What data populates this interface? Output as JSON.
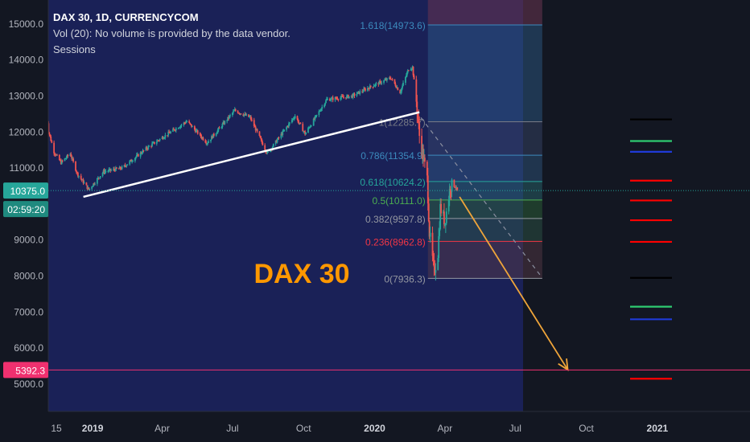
{
  "legend": {
    "symbol": "DAX 30, 1D, CURRENCYCOM",
    "volume": "Vol (20): No volume is provided by the data vendor.",
    "sessions": "Sessions"
  },
  "chart_data": {
    "type": "candlestick",
    "annotation": "DAX 30",
    "ylim": [
      4560,
      15700
    ],
    "y_ticks": [
      {
        "value": 5000,
        "label": "5000.0"
      },
      {
        "value": 6000,
        "label": "6000.0"
      },
      {
        "value": 7000,
        "label": "7000.0"
      },
      {
        "value": 8000,
        "label": "8000.0"
      },
      {
        "value": 9000,
        "label": "9000.0"
      },
      {
        "value": 11000,
        "label": "11000.0"
      },
      {
        "value": 12000,
        "label": "12000.0"
      },
      {
        "value": 13000,
        "label": "13000.0"
      },
      {
        "value": 14000,
        "label": "14000.0"
      },
      {
        "value": 15000,
        "label": "15000.0"
      }
    ],
    "x_ticks": [
      {
        "date": "2018-11-15",
        "label": "15",
        "bold": false
      },
      {
        "date": "2019-01-01",
        "label": "2019",
        "bold": true
      },
      {
        "date": "2019-04-01",
        "label": "Apr",
        "bold": false
      },
      {
        "date": "2019-07-01",
        "label": "Jul",
        "bold": false
      },
      {
        "date": "2019-10-01",
        "label": "Oct",
        "bold": false
      },
      {
        "date": "2020-01-01",
        "label": "2020",
        "bold": true
      },
      {
        "date": "2020-04-01",
        "label": "Apr",
        "bold": false
      },
      {
        "date": "2020-07-01",
        "label": "Jul",
        "bold": false
      },
      {
        "date": "2020-10-01",
        "label": "Oct",
        "bold": false
      },
      {
        "date": "2021-01-01",
        "label": "2021",
        "bold": true
      }
    ],
    "price_path": [
      {
        "date": "2018-11-01",
        "value": 12350
      },
      {
        "date": "2018-11-12",
        "value": 11450
      },
      {
        "date": "2018-11-21",
        "value": 11150
      },
      {
        "date": "2018-12-03",
        "value": 11400
      },
      {
        "date": "2018-12-12",
        "value": 10850
      },
      {
        "date": "2018-12-27",
        "value": 10400
      },
      {
        "date": "2019-01-15",
        "value": 10900
      },
      {
        "date": "2019-02-08",
        "value": 11000
      },
      {
        "date": "2019-03-15",
        "value": 11600
      },
      {
        "date": "2019-05-03",
        "value": 12300
      },
      {
        "date": "2019-05-29",
        "value": 11700
      },
      {
        "date": "2019-07-04",
        "value": 12600
      },
      {
        "date": "2019-07-24",
        "value": 12400
      },
      {
        "date": "2019-08-15",
        "value": 11400
      },
      {
        "date": "2019-09-20",
        "value": 12450
      },
      {
        "date": "2019-10-03",
        "value": 11950
      },
      {
        "date": "2019-10-31",
        "value": 12900
      },
      {
        "date": "2019-12-03",
        "value": 13000
      },
      {
        "date": "2019-12-31",
        "value": 13300
      },
      {
        "date": "2020-01-22",
        "value": 13500
      },
      {
        "date": "2020-02-03",
        "value": 13100
      },
      {
        "date": "2020-02-14",
        "value": 13750
      },
      {
        "date": "2020-02-19",
        "value": 13800
      },
      {
        "date": "2020-02-24",
        "value": 12850
      },
      {
        "date": "2020-02-28",
        "value": 11900
      },
      {
        "date": "2020-03-09",
        "value": 10700
      },
      {
        "date": "2020-03-12",
        "value": 9200
      },
      {
        "date": "2020-03-18",
        "value": 8100
      },
      {
        "date": "2020-03-23",
        "value": 8650
      },
      {
        "date": "2020-03-26",
        "value": 9900
      },
      {
        "date": "2020-04-01",
        "value": 9500
      },
      {
        "date": "2020-04-08",
        "value": 10500
      },
      {
        "date": "2020-04-14",
        "value": 10500
      },
      {
        "date": "2020-04-17",
        "value": 10375
      }
    ],
    "fib_levels": [
      {
        "ratio": "1.618",
        "price": 14973.6,
        "label": "1.618(14973.6)",
        "color": "#3c8bbd"
      },
      {
        "ratio": "1",
        "price": 12285.7,
        "label": "1(12285.7)",
        "color": "#787b86"
      },
      {
        "ratio": "0.786",
        "price": 11354.9,
        "label": "0.786(11354.9)",
        "color": "#3c8bbd"
      },
      {
        "ratio": "0.618",
        "price": 10624.2,
        "label": "0.618(10624.2)",
        "color": "#26a69a"
      },
      {
        "ratio": "0.5",
        "price": 10111.0,
        "label": "0.5(10111.0)",
        "color": "#4caf50"
      },
      {
        "ratio": "0.382",
        "price": 9597.8,
        "label": "0.382(9597.8)",
        "color": "#9598a1"
      },
      {
        "ratio": "0.236",
        "price": 8962.8,
        "label": "0.236(8962.8)",
        "color": "#f23645"
      },
      {
        "ratio": "0",
        "price": 7936.3,
        "label": "0(7936.3)",
        "color": "#9598a1"
      }
    ],
    "fib_range": {
      "start": "2020-03-10",
      "end": "2020-08-05"
    },
    "trendline": {
      "start": {
        "date": "2018-12-20",
        "value": 10200
      },
      "end": {
        "date": "2020-02-28",
        "value": 12550
      }
    },
    "dashed_line": {
      "start": {
        "date": "2020-03-01",
        "value": 12400
      },
      "end": {
        "date": "2020-08-05",
        "value": 7950
      }
    },
    "arrow": {
      "start": {
        "date": "2020-04-20",
        "value": 10200
      },
      "end": {
        "date": "2020-09-07",
        "value": 5400
      }
    },
    "right_levels": [
      {
        "value": 12350,
        "color": "#000000"
      },
      {
        "value": 11750,
        "color": "#2ecc71"
      },
      {
        "value": 11450,
        "color": "#1f3ad8"
      },
      {
        "value": 10650,
        "color": "#ff0000"
      },
      {
        "value": 10100,
        "color": "#ff0000"
      },
      {
        "value": 9550,
        "color": "#ff0000"
      },
      {
        "value": 8950,
        "color": "#ff0000"
      },
      {
        "value": 7950,
        "color": "#000000"
      },
      {
        "value": 7150,
        "color": "#2ecc71"
      },
      {
        "value": 6800,
        "color": "#1f3ad8"
      },
      {
        "value": 5150,
        "color": "#ff0000"
      }
    ],
    "current_price": {
      "value": 10375,
      "label": "10375.0",
      "countdown": "02:59:20",
      "color": "#26a69a"
    },
    "target_price": {
      "value": 5392.3,
      "label": "5392.3",
      "color": "#f0306f"
    }
  },
  "colors": {
    "background": "#131722",
    "session": "#1a2157",
    "up": "#26a69a",
    "down": "#ef5350",
    "trendline": "#ffffff",
    "arrow": "#f0a53a",
    "annotation": "#ff9800"
  }
}
